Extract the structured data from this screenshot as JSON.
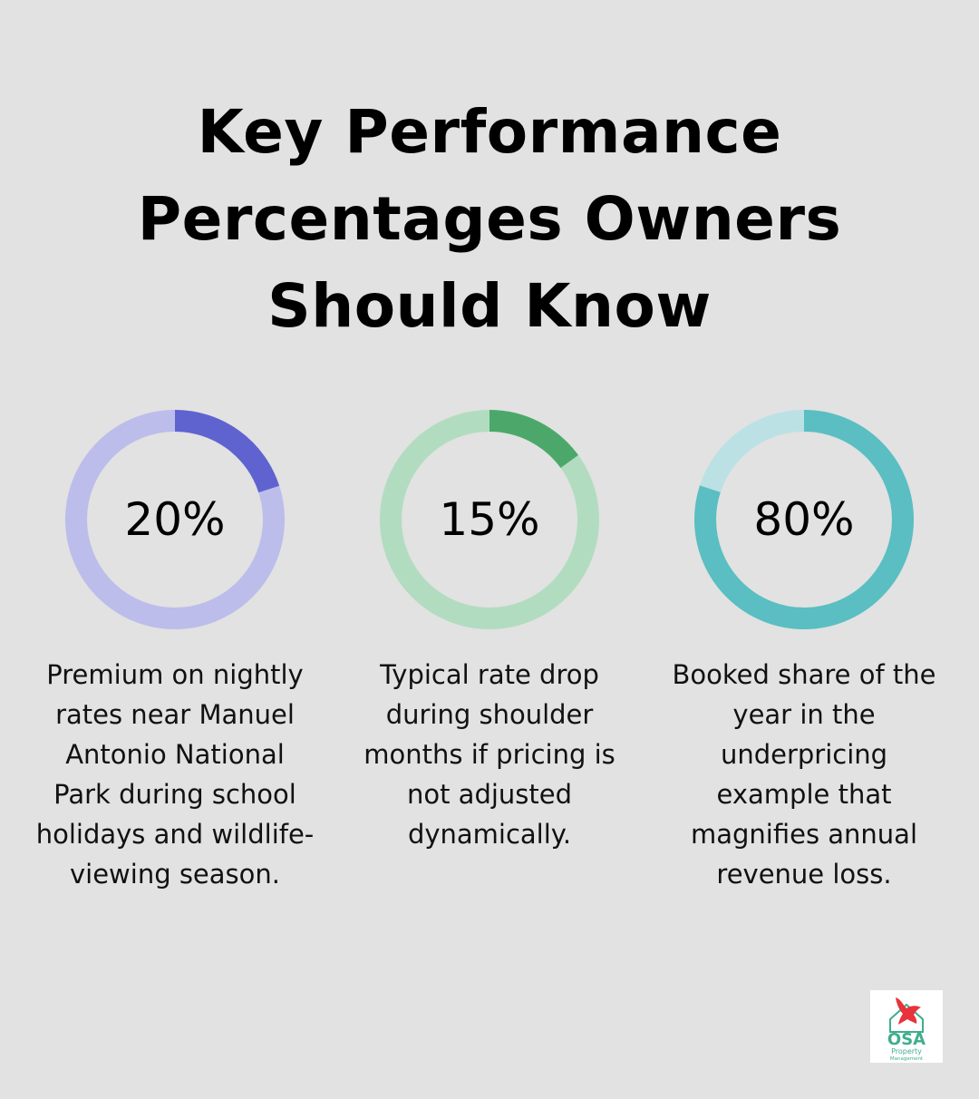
{
  "title": "Key Performance Percentages Owners Should Know",
  "title_lines": [
    "Key Performance",
    "Percentages Owners",
    "Should Know"
  ],
  "chart_data": [
    {
      "type": "pie",
      "variant": "donut",
      "value": 20,
      "label": "20%",
      "description": "Premium on nightly rates near Manuel Antonio National Park during school holidays and wildlife-viewing season.",
      "description_lines": [
        "Premium on nightly",
        "rates near Manuel",
        "Antonio National",
        "Park during school",
        "holidays and wildlife-",
        "viewing season."
      ],
      "color": "#5f63d0",
      "track_color": "#bcbdeb"
    },
    {
      "type": "pie",
      "variant": "donut",
      "value": 15,
      "label": "15%",
      "description": "Typical rate drop during shoulder months if pricing is not adjusted dynamically.",
      "description_lines": [
        "Typical rate drop",
        "during shoulder",
        "months if pricing is",
        "not adjusted",
        "dynamically."
      ],
      "color": "#4ca86a",
      "track_color": "#b2dcc0"
    },
    {
      "type": "pie",
      "variant": "donut",
      "value": 80,
      "label": "80%",
      "description": "Booked share of the year in the underpricing example that magnifies annual revenue loss.",
      "description_lines": [
        "Booked share of the",
        "year in the",
        "underpricing",
        "example that",
        "magnifies annual",
        "revenue loss."
      ],
      "color": "#5abec2",
      "track_color": "#bbe1e4"
    }
  ],
  "logo": {
    "name": "OSA",
    "line1": "Property",
    "line2": "Management",
    "icon": "parrot-icon",
    "colors": {
      "bird": "#e8323c",
      "house": "#3fae8c",
      "text": "#3fae8c"
    }
  }
}
